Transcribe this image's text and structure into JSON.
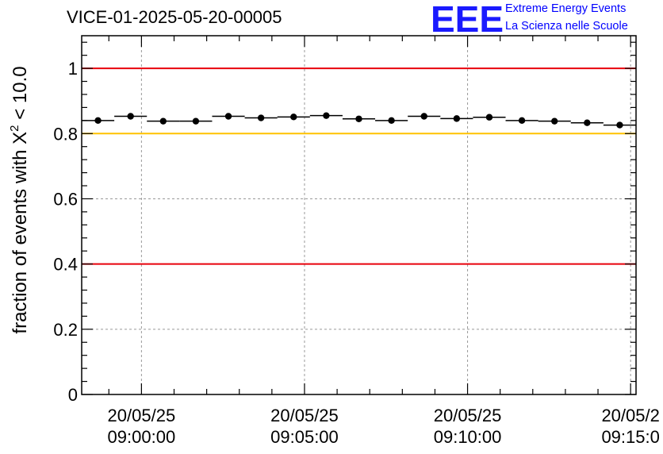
{
  "plot_title": "VICE-01-2025-05-20-00005",
  "logo": {
    "mark": "EEE",
    "line1": "Extreme Energy Events",
    "line2": "La Scienza nelle Scuole"
  },
  "colors": {
    "threshold_red": "#e8000b",
    "threshold_yellow": "#ffc200",
    "logo_blue": "#1a1aff",
    "grid": "#999999"
  },
  "chart_data": {
    "type": "scatter",
    "title": "VICE-01-2025-05-20-00005",
    "ylabel_text": "fraction of events with ",
    "ylabel_symbol": "X",
    "ylabel_sup": "2",
    "ylabel_suffix": " < 10.0",
    "xlabel": "",
    "ylim": [
      0,
      1.1
    ],
    "yticks": [
      0,
      0.2,
      0.4,
      0.6,
      0.8,
      1
    ],
    "ytick_labels": [
      "0",
      "0.2",
      "0.4",
      "0.6",
      "0.8",
      "1"
    ],
    "xlim": [
      "08:58:10",
      "09:15:10"
    ],
    "xticks": [
      {
        "t": "09:00:00",
        "date": "20/05/25",
        "time": "09:00:00"
      },
      {
        "t": "09:05:00",
        "date": "20/05/25",
        "time": "09:05:00"
      },
      {
        "t": "09:10:00",
        "date": "20/05/25",
        "time": "09:10:00"
      },
      {
        "t": "09:15:00",
        "date": "20/05/2",
        "time": "09:15:0"
      }
    ],
    "grid": true,
    "reference_lines": [
      {
        "y": 1.0,
        "color": "red"
      },
      {
        "y": 0.8,
        "color": "yellow"
      },
      {
        "y": 0.4,
        "color": "red"
      }
    ],
    "bin_width_minutes": 1,
    "points": [
      {
        "x": "08:58:40",
        "y": 0.84
      },
      {
        "x": "08:59:40",
        "y": 0.853
      },
      {
        "x": "09:00:40",
        "y": 0.838
      },
      {
        "x": "09:01:40",
        "y": 0.838
      },
      {
        "x": "09:02:40",
        "y": 0.853
      },
      {
        "x": "09:03:40",
        "y": 0.848
      },
      {
        "x": "09:04:40",
        "y": 0.851
      },
      {
        "x": "09:05:40",
        "y": 0.855
      },
      {
        "x": "09:06:40",
        "y": 0.845
      },
      {
        "x": "09:07:40",
        "y": 0.84
      },
      {
        "x": "09:08:40",
        "y": 0.853
      },
      {
        "x": "09:09:40",
        "y": 0.846
      },
      {
        "x": "09:10:40",
        "y": 0.85
      },
      {
        "x": "09:11:40",
        "y": 0.84
      },
      {
        "x": "09:12:40",
        "y": 0.838
      },
      {
        "x": "09:13:40",
        "y": 0.833
      },
      {
        "x": "09:14:40",
        "y": 0.826
      }
    ]
  }
}
